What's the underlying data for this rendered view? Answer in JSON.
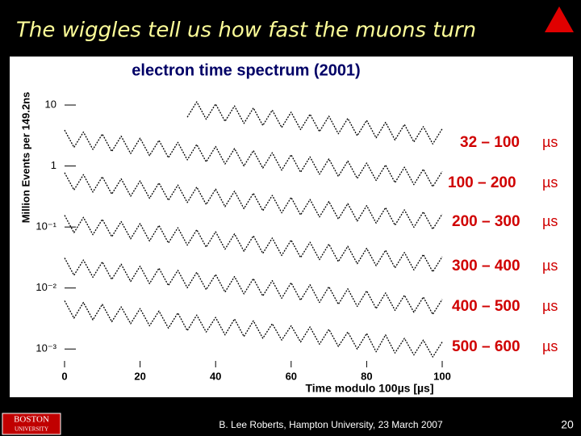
{
  "slide": {
    "title": "The wiggles tell us how fast the muons turn",
    "logo": [
      "BOSTON",
      "UNIVERSITY"
    ],
    "footer": "B. Lee Roberts, Hampton University, 23 March 2007",
    "page_number": "20"
  },
  "chart_data": {
    "type": "line",
    "title": "electron time spectrum (2001)",
    "x_label": "Time modulo 100µs [µs]",
    "y_label": "Million Events per 149.2ns",
    "log_y": true,
    "legend_unit": "µs",
    "x": [
      0,
      2.5,
      5,
      7.5,
      10,
      12.5,
      15,
      17.5,
      20,
      22.5,
      25,
      27.5,
      30,
      32.5,
      35,
      37.5,
      40,
      42.5,
      45,
      47.5,
      50,
      52.5,
      55,
      57.5,
      60,
      62.5,
      65,
      67.5,
      70,
      72.5,
      75,
      77.5,
      80,
      82.5,
      85,
      87.5,
      90,
      92.5,
      95,
      97.5,
      100
    ],
    "xlim": [
      0,
      100
    ],
    "xticks": [
      0,
      20,
      40,
      60,
      80,
      100
    ],
    "ylim": [
      0.0005,
      25
    ],
    "yticks": [
      {
        "value": 10,
        "label": "10"
      },
      {
        "value": 1,
        "label": "1"
      },
      {
        "value": 0.1,
        "label": "10⁻¹"
      },
      {
        "value": 0.01,
        "label": "10⁻²"
      },
      {
        "value": 0.001,
        "label": "10⁻³"
      }
    ],
    "series": [
      {
        "name": "32 – 100",
        "color": "#000000",
        "values": [
          null,
          null,
          null,
          null,
          null,
          null,
          null,
          null,
          null,
          null,
          null,
          null,
          null,
          6.3,
          11.3,
          5.85,
          10.4,
          5.4,
          9.65,
          5.0,
          8.95,
          4.62,
          8.25,
          4.28,
          7.65,
          3.96,
          7.05,
          3.66,
          6.55,
          3.38,
          6.05,
          3.14,
          5.6,
          2.9,
          5.2,
          2.67,
          4.79,
          2.48,
          4.43,
          2.3,
          4.08
        ]
      },
      {
        "name": "100 – 200",
        "color": "#000000",
        "values": [
          3.9,
          2.02,
          3.61,
          1.87,
          3.34,
          1.73,
          3.08,
          1.6,
          2.85,
          1.48,
          2.64,
          1.37,
          2.44,
          1.26,
          2.26,
          1.17,
          2.09,
          1.08,
          1.93,
          1.0,
          1.79,
          0.924,
          1.65,
          0.855,
          1.53,
          0.792,
          1.41,
          0.732,
          1.31,
          0.675,
          1.21,
          0.627,
          1.12,
          0.579,
          1.04,
          0.534,
          0.957,
          0.495,
          0.885,
          0.459,
          0.816
        ]
      },
      {
        "name": "200 – 300",
        "color": "#000000",
        "values": [
          0.78,
          0.404,
          0.722,
          0.374,
          0.668,
          0.346,
          0.616,
          0.32,
          0.57,
          0.296,
          0.528,
          0.274,
          0.488,
          0.252,
          0.452,
          0.234,
          0.418,
          0.216,
          0.386,
          0.2,
          0.358,
          0.185,
          0.33,
          0.171,
          0.306,
          0.158,
          0.282,
          0.146,
          0.262,
          0.135,
          0.242,
          0.125,
          0.224,
          0.116,
          0.208,
          0.107,
          0.191,
          0.099,
          0.177,
          0.092,
          0.163
        ]
      },
      {
        "name": "300 – 400",
        "color": "#000000",
        "values": [
          0.156,
          0.0808,
          0.144,
          0.0748,
          0.134,
          0.0692,
          0.123,
          0.064,
          0.114,
          0.0592,
          0.106,
          0.0548,
          0.0976,
          0.0504,
          0.0904,
          0.0468,
          0.0836,
          0.0432,
          0.0772,
          0.04,
          0.0716,
          0.037,
          0.066,
          0.0342,
          0.0612,
          0.0316,
          0.0564,
          0.0292,
          0.0524,
          0.027,
          0.0484,
          0.025,
          0.0448,
          0.0232,
          0.0416,
          0.0214,
          0.0382,
          0.0198,
          0.0354,
          0.0184,
          0.0326
        ]
      },
      {
        "name": "400 – 500",
        "color": "#000000",
        "values": [
          0.0312,
          0.0162,
          0.0288,
          0.015,
          0.0268,
          0.0138,
          0.0246,
          0.0128,
          0.0228,
          0.0118,
          0.0212,
          0.011,
          0.0195,
          0.0101,
          0.0181,
          0.0094,
          0.0167,
          0.0086,
          0.0154,
          0.008,
          0.0143,
          0.0074,
          0.0132,
          0.0068,
          0.0122,
          0.0063,
          0.0113,
          0.0058,
          0.0105,
          0.0054,
          0.0097,
          0.005,
          0.009,
          0.0046,
          0.0083,
          0.0043,
          0.0076,
          0.004,
          0.0071,
          0.0037,
          0.0065
        ]
      },
      {
        "name": "500 – 600",
        "color": "#000000",
        "values": [
          0.0062,
          0.0032,
          0.0058,
          0.003,
          0.0054,
          0.0028,
          0.0049,
          0.0026,
          0.0046,
          0.0024,
          0.0042,
          0.0022,
          0.0039,
          0.002,
          0.0036,
          0.0019,
          0.0033,
          0.0017,
          0.0031,
          0.0016,
          0.0029,
          0.0015,
          0.0026,
          0.0014,
          0.0024,
          0.0013,
          0.0023,
          0.0012,
          0.0021,
          0.0011,
          0.0019,
          0.001,
          0.0018,
          0.0009,
          0.0017,
          0.00086,
          0.0015,
          0.0008,
          0.0014,
          0.00074,
          0.0013
        ]
      }
    ]
  }
}
